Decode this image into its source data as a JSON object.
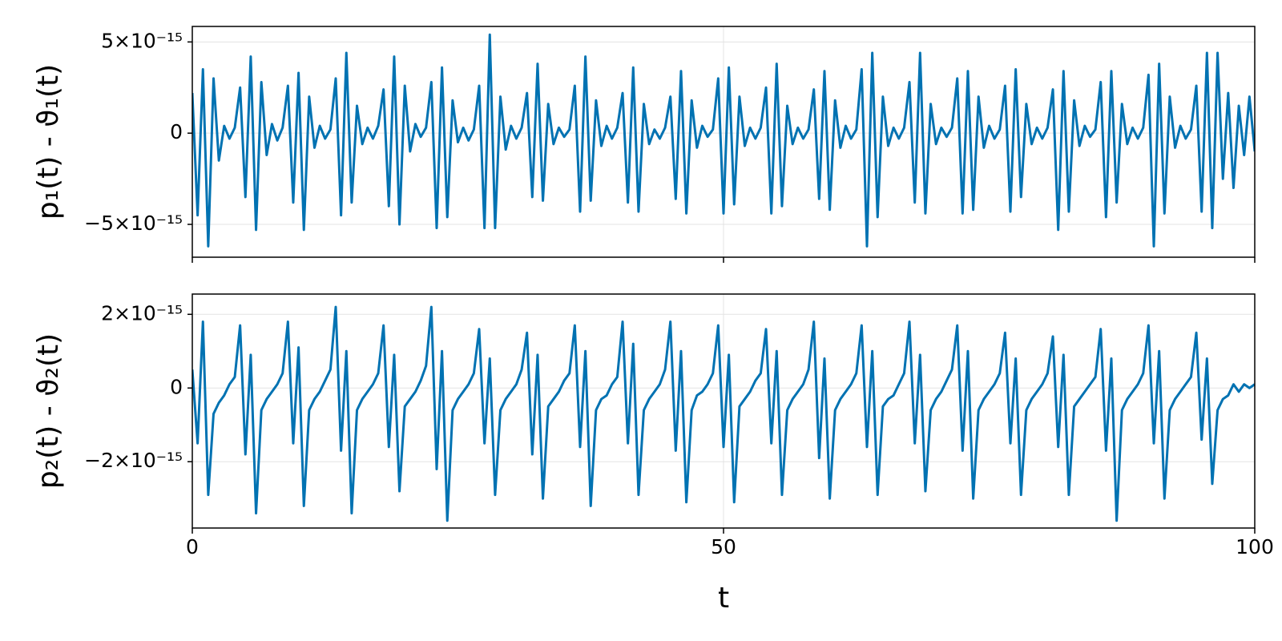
{
  "chart_data": [
    {
      "type": "line",
      "ylabel": "p₁(t) - ϑ₁(t)",
      "x": [
        0,
        0.5,
        1,
        1.5,
        2,
        2.5,
        3,
        3.5,
        4,
        4.5,
        5,
        5.5,
        6,
        6.5,
        7,
        7.5,
        8,
        8.5,
        9,
        9.5,
        10,
        10.5,
        11,
        11.5,
        12,
        12.5,
        13,
        13.5,
        14,
        14.5,
        15,
        15.5,
        16,
        16.5,
        17,
        17.5,
        18,
        18.5,
        19,
        19.5,
        20,
        20.5,
        21,
        21.5,
        22,
        22.5,
        23,
        23.5,
        24,
        24.5,
        25,
        25.5,
        26,
        26.5,
        27,
        27.5,
        28,
        28.5,
        29,
        29.5,
        30,
        30.5,
        31,
        31.5,
        32,
        32.5,
        33,
        33.5,
        34,
        34.5,
        35,
        35.5,
        36,
        36.5,
        37,
        37.5,
        38,
        38.5,
        39,
        39.5,
        40,
        40.5,
        41,
        41.5,
        42,
        42.5,
        43,
        43.5,
        44,
        44.5,
        45,
        45.5,
        46,
        46.5,
        47,
        47.5,
        48,
        48.5,
        49,
        49.5,
        50,
        50.5,
        51,
        51.5,
        52,
        52.5,
        53,
        53.5,
        54,
        54.5,
        55,
        55.5,
        56,
        56.5,
        57,
        57.5,
        58,
        58.5,
        59,
        59.5,
        60,
        60.5,
        61,
        61.5,
        62,
        62.5,
        63,
        63.5,
        64,
        64.5,
        65,
        65.5,
        66,
        66.5,
        67,
        67.5,
        68,
        68.5,
        69,
        69.5,
        70,
        70.5,
        71,
        71.5,
        72,
        72.5,
        73,
        73.5,
        74,
        74.5,
        75,
        75.5,
        76,
        76.5,
        77,
        77.5,
        78,
        78.5,
        79,
        79.5,
        80,
        80.5,
        81,
        81.5,
        82,
        82.5,
        83,
        83.5,
        84,
        84.5,
        85,
        85.5,
        86,
        86.5,
        87,
        87.5,
        88,
        88.5,
        89,
        89.5,
        90,
        90.5,
        91,
        91.5,
        92,
        92.5,
        93,
        93.5,
        94,
        94.5,
        95,
        95.5,
        96,
        96.5,
        97,
        97.5,
        98,
        98.5,
        99,
        99.5,
        100
      ],
      "series": [
        {
          "color": "#0072b2",
          "values": [
            2.2e-15,
            -4.5e-15,
            3.5e-15,
            -6.2e-15,
            3e-15,
            -1.5e-15,
            4e-16,
            -3e-16,
            3e-16,
            2.5e-15,
            -3.5e-15,
            4.2e-15,
            -5.3e-15,
            2.8e-15,
            -1.2e-15,
            5e-16,
            -4e-16,
            3e-16,
            2.6e-15,
            -3.8e-15,
            3.3e-15,
            -5.3e-15,
            2e-15,
            -8e-16,
            4e-16,
            -3e-16,
            2e-16,
            3e-15,
            -4.5e-15,
            4.4e-15,
            -3.8e-15,
            1.5e-15,
            -6e-16,
            3e-16,
            -3e-16,
            4e-16,
            2.4e-15,
            -4e-15,
            4.2e-15,
            -5e-15,
            2.6e-15,
            -1e-15,
            5e-16,
            -2e-16,
            3e-16,
            2.8e-15,
            -5.2e-15,
            3.6e-15,
            -4.6e-15,
            1.8e-15,
            -5e-16,
            3e-16,
            -4e-16,
            2e-16,
            2.6e-15,
            -5.2e-15,
            5.4e-15,
            -5.2e-15,
            2e-15,
            -9e-16,
            4e-16,
            -3e-16,
            3e-16,
            2.2e-15,
            -3.5e-15,
            3.8e-15,
            -3.7e-15,
            1.6e-15,
            -6e-16,
            3e-16,
            -2e-16,
            2e-16,
            2.6e-15,
            -4.3e-15,
            4.2e-15,
            -3.7e-15,
            1.8e-15,
            -7e-16,
            4e-16,
            -3e-16,
            3e-16,
            2.2e-15,
            -3.8e-15,
            3.6e-15,
            -4.3e-15,
            1.6e-15,
            -6e-16,
            2e-16,
            -3e-16,
            3e-16,
            2e-15,
            -3.6e-15,
            3.4e-15,
            -4.4e-15,
            1.8e-15,
            -8e-16,
            4e-16,
            -2e-16,
            2e-16,
            3e-15,
            -4.4e-15,
            3.6e-15,
            -3.9e-15,
            2e-15,
            -7e-16,
            3e-16,
            -3e-16,
            3e-16,
            2.5e-15,
            -4.4e-15,
            3.8e-15,
            -4e-15,
            1.5e-15,
            -6e-16,
            3e-16,
            -3e-16,
            2e-16,
            2.4e-15,
            -3.6e-15,
            3.4e-15,
            -4.2e-15,
            1.8e-15,
            -8e-16,
            4e-16,
            -3e-16,
            2e-16,
            3.5e-15,
            -6.2e-15,
            4.4e-15,
            -4.6e-15,
            2e-15,
            -7e-16,
            3e-16,
            -3e-16,
            3e-16,
            2.8e-15,
            -3.8e-15,
            4.4e-15,
            -4.4e-15,
            1.6e-15,
            -6e-16,
            3e-16,
            -2e-16,
            3e-16,
            3e-15,
            -4.4e-15,
            3.4e-15,
            -4.2e-15,
            2e-15,
            -8e-16,
            4e-16,
            -3e-16,
            2e-16,
            2.6e-15,
            -4.3e-15,
            3.5e-15,
            -3.5e-15,
            1.6e-15,
            -6e-16,
            3e-16,
            -3e-16,
            3e-16,
            2.4e-15,
            -5.3e-15,
            3.4e-15,
            -4.3e-15,
            1.8e-15,
            -7e-16,
            4e-16,
            -2e-16,
            2e-16,
            2.8e-15,
            -4.6e-15,
            3.4e-15,
            -3.8e-15,
            1.6e-15,
            -6e-16,
            3e-16,
            -3e-16,
            3e-16,
            3.2e-15,
            -6.2e-15,
            3.8e-15,
            -4.4e-15,
            2e-15,
            -8e-16,
            4e-16,
            -3e-16,
            2e-16,
            2.6e-15,
            -4.3e-15,
            4.4e-15,
            -5.2e-15,
            4.4e-15,
            -2.5e-15,
            2.2e-15,
            -3e-15,
            1.5e-15,
            -1.2e-15,
            2e-15,
            -1e-15
          ]
        }
      ],
      "xlim": [
        0,
        100
      ],
      "xticks": [
        0,
        50,
        100
      ],
      "ylim": [
        -6.8e-15,
        5.85e-15
      ],
      "yticks": [
        {
          "value": -5e-15,
          "label": "−5×10⁻¹⁵"
        },
        0,
        {
          "value": 5e-15,
          "label": "5×10⁻¹⁵"
        }
      ],
      "grid": true
    },
    {
      "type": "line",
      "ylabel": "p₂(t) - ϑ₂(t)",
      "xlabel": "t",
      "x": [
        0,
        0.5,
        1,
        1.5,
        2,
        2.5,
        3,
        3.5,
        4,
        4.5,
        5,
        5.5,
        6,
        6.5,
        7,
        7.5,
        8,
        8.5,
        9,
        9.5,
        10,
        10.5,
        11,
        11.5,
        12,
        12.5,
        13,
        13.5,
        14,
        14.5,
        15,
        15.5,
        16,
        16.5,
        17,
        17.5,
        18,
        18.5,
        19,
        19.5,
        20,
        20.5,
        21,
        21.5,
        22,
        22.5,
        23,
        23.5,
        24,
        24.5,
        25,
        25.5,
        26,
        26.5,
        27,
        27.5,
        28,
        28.5,
        29,
        29.5,
        30,
        30.5,
        31,
        31.5,
        32,
        32.5,
        33,
        33.5,
        34,
        34.5,
        35,
        35.5,
        36,
        36.5,
        37,
        37.5,
        38,
        38.5,
        39,
        39.5,
        40,
        40.5,
        41,
        41.5,
        42,
        42.5,
        43,
        43.5,
        44,
        44.5,
        45,
        45.5,
        46,
        46.5,
        47,
        47.5,
        48,
        48.5,
        49,
        49.5,
        50,
        50.5,
        51,
        51.5,
        52,
        52.5,
        53,
        53.5,
        54,
        54.5,
        55,
        55.5,
        56,
        56.5,
        57,
        57.5,
        58,
        58.5,
        59,
        59.5,
        60,
        60.5,
        61,
        61.5,
        62,
        62.5,
        63,
        63.5,
        64,
        64.5,
        65,
        65.5,
        66,
        66.5,
        67,
        67.5,
        68,
        68.5,
        69,
        69.5,
        70,
        70.5,
        71,
        71.5,
        72,
        72.5,
        73,
        73.5,
        74,
        74.5,
        75,
        75.5,
        76,
        76.5,
        77,
        77.5,
        78,
        78.5,
        79,
        79.5,
        80,
        80.5,
        81,
        81.5,
        82,
        82.5,
        83,
        83.5,
        84,
        84.5,
        85,
        85.5,
        86,
        86.5,
        87,
        87.5,
        88,
        88.5,
        89,
        89.5,
        90,
        90.5,
        91,
        91.5,
        92,
        92.5,
        93,
        93.5,
        94,
        94.5,
        95,
        95.5,
        96,
        96.5,
        97,
        97.5,
        98,
        98.5,
        99,
        99.5,
        100
      ],
      "series": [
        {
          "color": "#0072b2",
          "values": [
            5e-16,
            -1.5e-15,
            1.8e-15,
            -2.9e-15,
            -7e-16,
            -4e-16,
            -2e-16,
            1e-16,
            3e-16,
            1.7e-15,
            -1.8e-15,
            9e-16,
            -3.4e-15,
            -6e-16,
            -3e-16,
            -1e-16,
            1e-16,
            4e-16,
            1.8e-15,
            -1.5e-15,
            1.1e-15,
            -3.2e-15,
            -6e-16,
            -3e-16,
            -1e-16,
            2e-16,
            5e-16,
            2.2e-15,
            -1.7e-15,
            1e-15,
            -3.4e-15,
            -6e-16,
            -3e-16,
            -1e-16,
            1e-16,
            4e-16,
            1.7e-15,
            -1.6e-15,
            9e-16,
            -2.8e-15,
            -5e-16,
            -3e-16,
            -1e-16,
            2e-16,
            6e-16,
            2.2e-15,
            -2.2e-15,
            1e-15,
            -3.6e-15,
            -6e-16,
            -3e-16,
            -1e-16,
            1e-16,
            4e-16,
            1.6e-15,
            -1.5e-15,
            8e-16,
            -2.9e-15,
            -6e-16,
            -3e-16,
            -1e-16,
            1e-16,
            5e-16,
            1.5e-15,
            -1.8e-15,
            9e-16,
            -3e-15,
            -5e-16,
            -3e-16,
            -1e-16,
            2e-16,
            4e-16,
            1.7e-15,
            -1.6e-15,
            1e-15,
            -3.2e-15,
            -6e-16,
            -3e-16,
            -2e-16,
            1e-16,
            3e-16,
            1.8e-15,
            -1.5e-15,
            1.2e-15,
            -2.9e-15,
            -6e-16,
            -3e-16,
            -1e-16,
            1e-16,
            5e-16,
            1.8e-15,
            -1.7e-15,
            1e-15,
            -3.1e-15,
            -6e-16,
            -2e-16,
            -1e-16,
            1e-16,
            4e-16,
            1.7e-15,
            -1.6e-15,
            9e-16,
            -3.1e-15,
            -5e-16,
            -3e-16,
            -1e-16,
            2e-16,
            4e-16,
            1.6e-15,
            -1.5e-15,
            1e-15,
            -2.9e-15,
            -6e-16,
            -3e-16,
            -1e-16,
            1e-16,
            5e-16,
            1.8e-15,
            -1.9e-15,
            8e-16,
            -3e-15,
            -6e-16,
            -3e-16,
            -1e-16,
            1e-16,
            4e-16,
            1.7e-15,
            -1.6e-15,
            1e-15,
            -2.9e-15,
            -5e-16,
            -3e-16,
            -2e-16,
            1e-16,
            4e-16,
            1.8e-15,
            -1.5e-15,
            9e-16,
            -2.8e-15,
            -6e-16,
            -3e-16,
            -1e-16,
            2e-16,
            5e-16,
            1.7e-15,
            -1.7e-15,
            1e-15,
            -3e-15,
            -6e-16,
            -3e-16,
            -1e-16,
            1e-16,
            4e-16,
            1.5e-15,
            -1.5e-15,
            8e-16,
            -2.9e-15,
            -6e-16,
            -3e-16,
            -1e-16,
            1e-16,
            4e-16,
            1.4e-15,
            -1.6e-15,
            9e-16,
            -2.9e-15,
            -5e-16,
            -3e-16,
            -1e-16,
            1e-16,
            3e-16,
            1.6e-15,
            -1.7e-15,
            8e-16,
            -3.6e-15,
            -6e-16,
            -3e-16,
            -1e-16,
            1e-16,
            4e-16,
            1.7e-15,
            -1.5e-15,
            1e-15,
            -3e-15,
            -6e-16,
            -3e-16,
            -1e-16,
            1e-16,
            3e-16,
            1.5e-15,
            -1.4e-15,
            8e-16,
            -2.6e-15,
            -6e-16,
            -3e-16,
            -2e-16,
            1e-16,
            -1e-16,
            1e-16,
            0,
            1e-16
          ]
        }
      ],
      "xlim": [
        0,
        100
      ],
      "xticks": [
        0,
        50,
        100
      ],
      "ylim": [
        -3.8e-15,
        2.55e-15
      ],
      "yticks": [
        {
          "value": -2e-15,
          "label": "−2×10⁻¹⁵"
        },
        0,
        {
          "value": 2e-15,
          "label": "2×10⁻¹⁵"
        }
      ],
      "grid": true
    }
  ]
}
